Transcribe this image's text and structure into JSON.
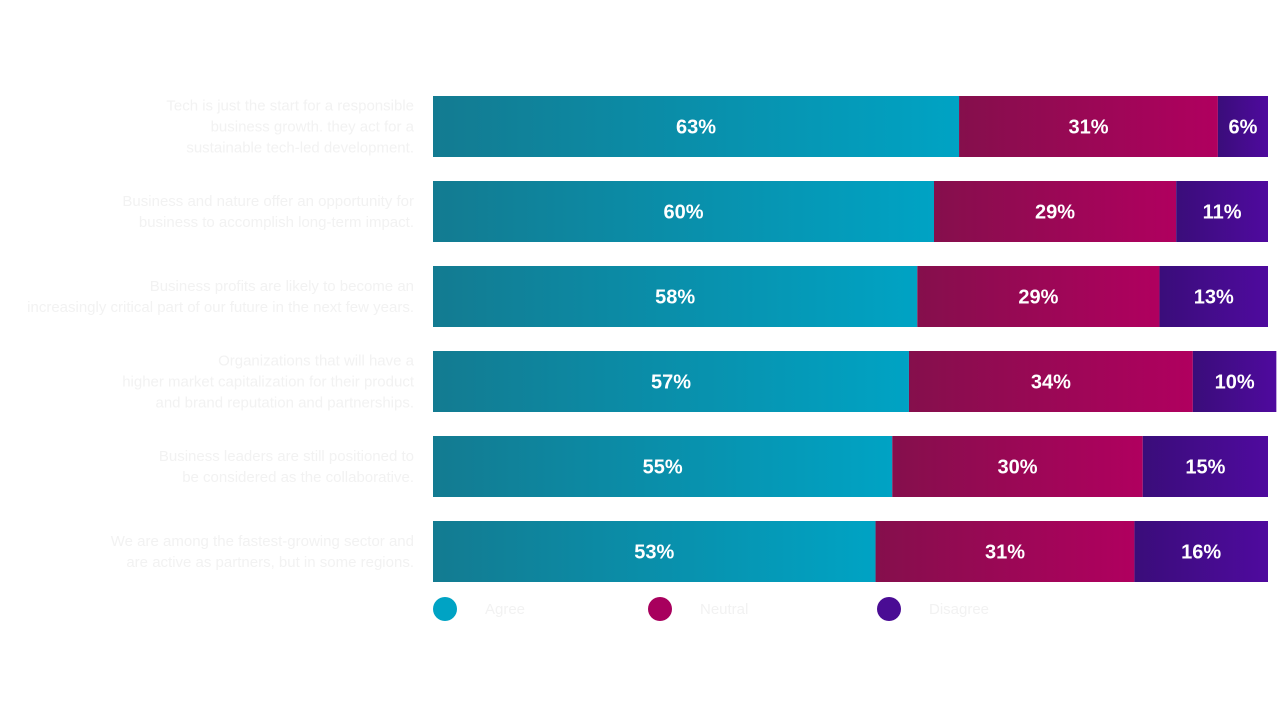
{
  "chart_data": {
    "type": "bar",
    "orientation": "horizontal",
    "stacked": true,
    "categories": [
      [
        "Tech is just the start for a responsible",
        "business growth. they act for a",
        "sustainable tech-led development."
      ],
      [
        "Business and nature offer an opportunity for",
        "business to accomplish long-term impact."
      ],
      [
        "Business profits are likely to become an",
        "increasingly critical part of our future in the next few years."
      ],
      [
        "Organizations that will have a",
        "higher market capitalization for their product",
        "and brand reputation and partnerships."
      ],
      [
        "Business leaders are still positioned to",
        "be considered as the collaborative."
      ],
      [
        "We are among the fastest-growing sector and",
        "are active as partners, but in some regions."
      ]
    ],
    "series": [
      {
        "name": "Agree",
        "values": [
          63,
          60,
          58,
          57,
          55,
          53
        ]
      },
      {
        "name": "Neutral",
        "values": [
          31,
          29,
          29,
          34,
          30,
          31
        ]
      },
      {
        "name": "Disagree",
        "values": [
          6,
          11,
          13,
          10,
          15,
          16
        ]
      }
    ],
    "value_suffix": "%",
    "xlim": [
      0,
      100
    ],
    "grid": false,
    "legend_position": "bottom-left",
    "colors": {
      "agree_dark": "#137b91",
      "agree_light": "#00a3c4",
      "neutral_dark": "#850f4c",
      "neutral_light": "#b0005f",
      "disagree_dark": "#3a0d7a",
      "disagree_light": "#4f0a9e",
      "legend_agree": "#00a3c4",
      "legend_neutral": "#a8005d",
      "legend_disagree": "#4a0c94"
    }
  }
}
